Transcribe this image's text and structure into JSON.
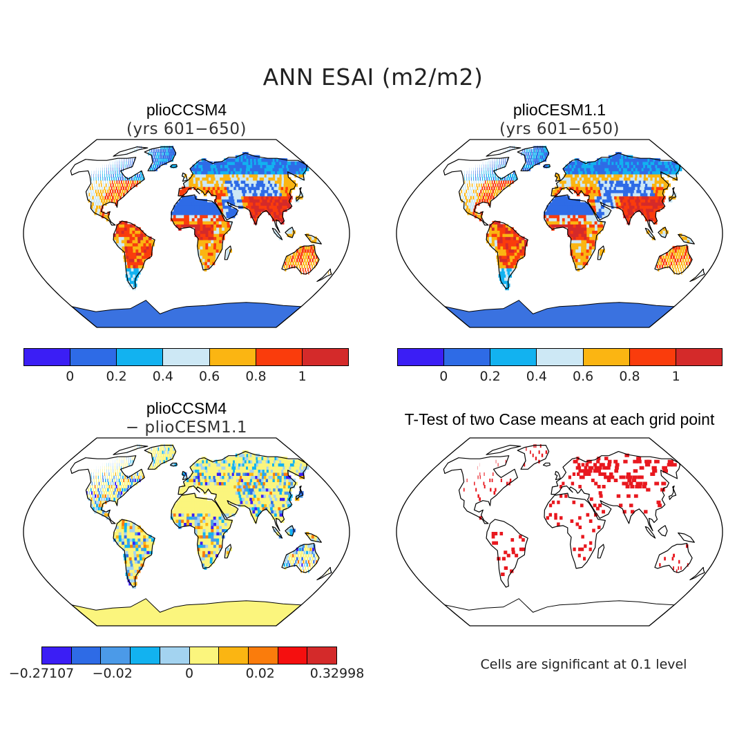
{
  "title": "ANN ESAI (m2/m2)",
  "panels": {
    "top_left": {
      "title": "plioCCSM4",
      "subtitle": "(yrs 601−650)",
      "field": "mean"
    },
    "top_right": {
      "title": "plioCESM1.1",
      "subtitle": "(yrs 601−650)",
      "field": "mean"
    },
    "bottom_left": {
      "title": "plioCCSM4",
      "subtitle": "− plioCESM1.1",
      "field": "difference"
    },
    "bottom_right": {
      "title": "T-Test of two Case means at each grid point",
      "note": "Cells are significant at 0.1 level",
      "field": "significance"
    }
  },
  "colorbars": {
    "mean": {
      "colors": [
        "#3b1ef5",
        "#2e6be6",
        "#12b2f0",
        "#cde8f5",
        "#fbb512",
        "#fa3c0c",
        "#d42a2a"
      ],
      "labels": [
        "0",
        "0.2",
        "0.4",
        "0.6",
        "0.8",
        "1"
      ]
    },
    "diff": {
      "colors": [
        "#3b1ef5",
        "#2e6be6",
        "#4b9ae8",
        "#12b2f0",
        "#a3d3f0",
        "#fbf57d",
        "#fbb512",
        "#fa7c0c",
        "#f50f0f",
        "#d42a2a"
      ],
      "labels": [
        "−0.27107",
        "−0.02",
        "0",
        "0.02",
        "0.32998"
      ]
    }
  },
  "map_colors": {
    "ocean": "#ffffff",
    "antarctica_mean": "#3a72e0",
    "antarctica_diff": "#fbf57d",
    "significant": "#e8181f"
  }
}
